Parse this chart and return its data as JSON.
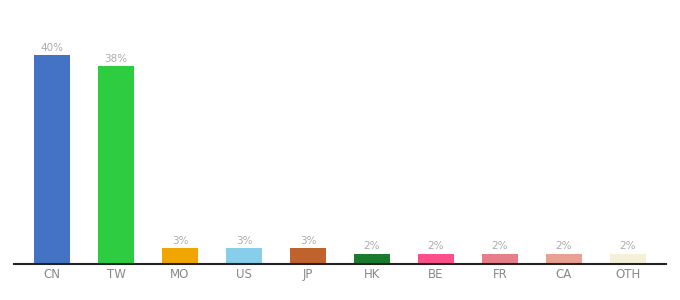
{
  "categories": [
    "CN",
    "TW",
    "MO",
    "US",
    "JP",
    "HK",
    "BE",
    "FR",
    "CA",
    "OTH"
  ],
  "values": [
    40,
    38,
    3,
    3,
    3,
    2,
    2,
    2,
    2,
    2
  ],
  "bar_colors": [
    "#4472c4",
    "#2ecc40",
    "#f0a500",
    "#87ceeb",
    "#c0622b",
    "#1a7a2e",
    "#ff4f8b",
    "#e87d8a",
    "#e8a090",
    "#f5f0d8"
  ],
  "value_labels": [
    "40%",
    "38%",
    "3%",
    "3%",
    "3%",
    "2%",
    "2%",
    "2%",
    "2%",
    "2%"
  ],
  "ylim": [
    0,
    46
  ],
  "bar_width": 0.55,
  "label_color": "#aaaaaa",
  "axis_line_color": "#222222",
  "background_color": "#ffffff",
  "tick_color": "#888888"
}
